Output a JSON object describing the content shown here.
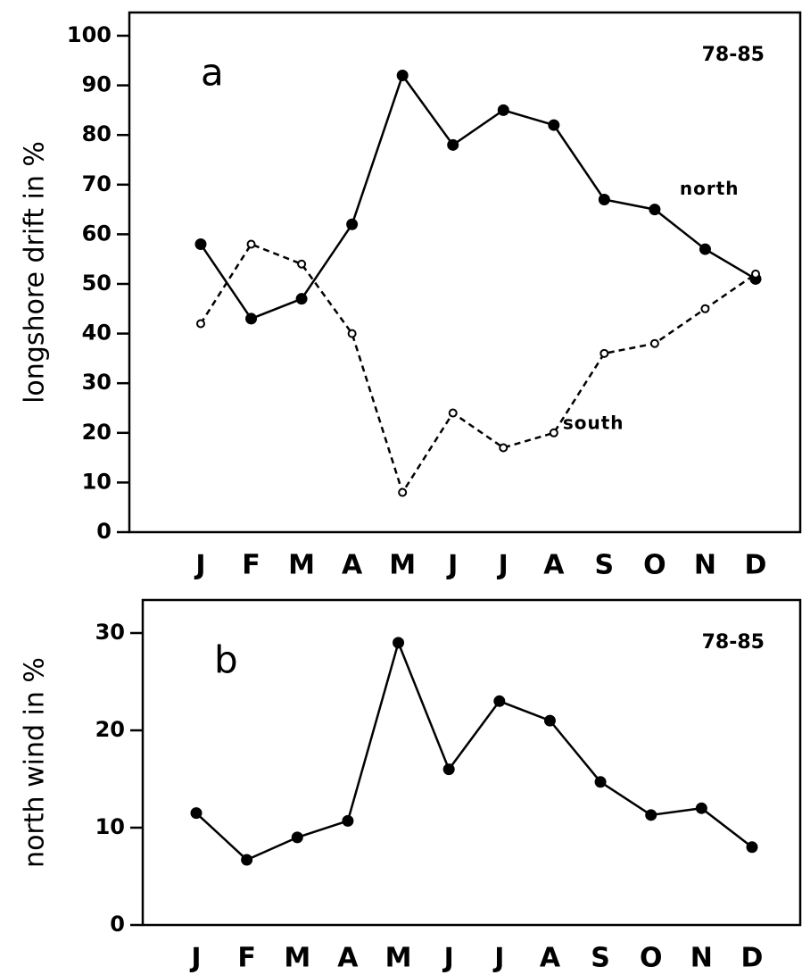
{
  "chart_data": [
    {
      "type": "line",
      "panel_label": "a",
      "annotation": "78-85",
      "ylabel": "longshore drift in %",
      "categories": [
        "J",
        "F",
        "M",
        "A",
        "M",
        "J",
        "J",
        "A",
        "S",
        "O",
        "N",
        "D"
      ],
      "series": [
        {
          "name": "north",
          "color": "#000000",
          "line_style": "solid",
          "marker": "filled",
          "values": [
            58,
            43,
            47,
            62,
            92,
            78,
            85,
            82,
            67,
            65,
            57,
            51
          ]
        },
        {
          "name": "south",
          "color": "#000000",
          "line_style": "dashed",
          "marker": "open",
          "values": [
            42,
            58,
            54,
            40,
            8,
            24,
            17,
            20,
            36,
            38,
            45,
            52
          ]
        }
      ],
      "ylim": [
        0,
        100
      ],
      "yticks": [
        0,
        10,
        20,
        30,
        40,
        50,
        60,
        70,
        80,
        90,
        100
      ],
      "grid": false
    },
    {
      "type": "line",
      "panel_label": "b",
      "annotation": "78-85",
      "ylabel": "north wind in %",
      "categories": [
        "J",
        "F",
        "M",
        "A",
        "M",
        "J",
        "J",
        "A",
        "S",
        "O",
        "N",
        "D"
      ],
      "values": [
        11.5,
        6.7,
        9,
        10.7,
        29,
        16,
        23,
        21,
        14.7,
        11.3,
        12,
        8
      ],
      "color": "#000000",
      "ylim": [
        0,
        30
      ],
      "yticks": [
        0,
        10,
        20,
        30
      ],
      "grid": false
    }
  ]
}
